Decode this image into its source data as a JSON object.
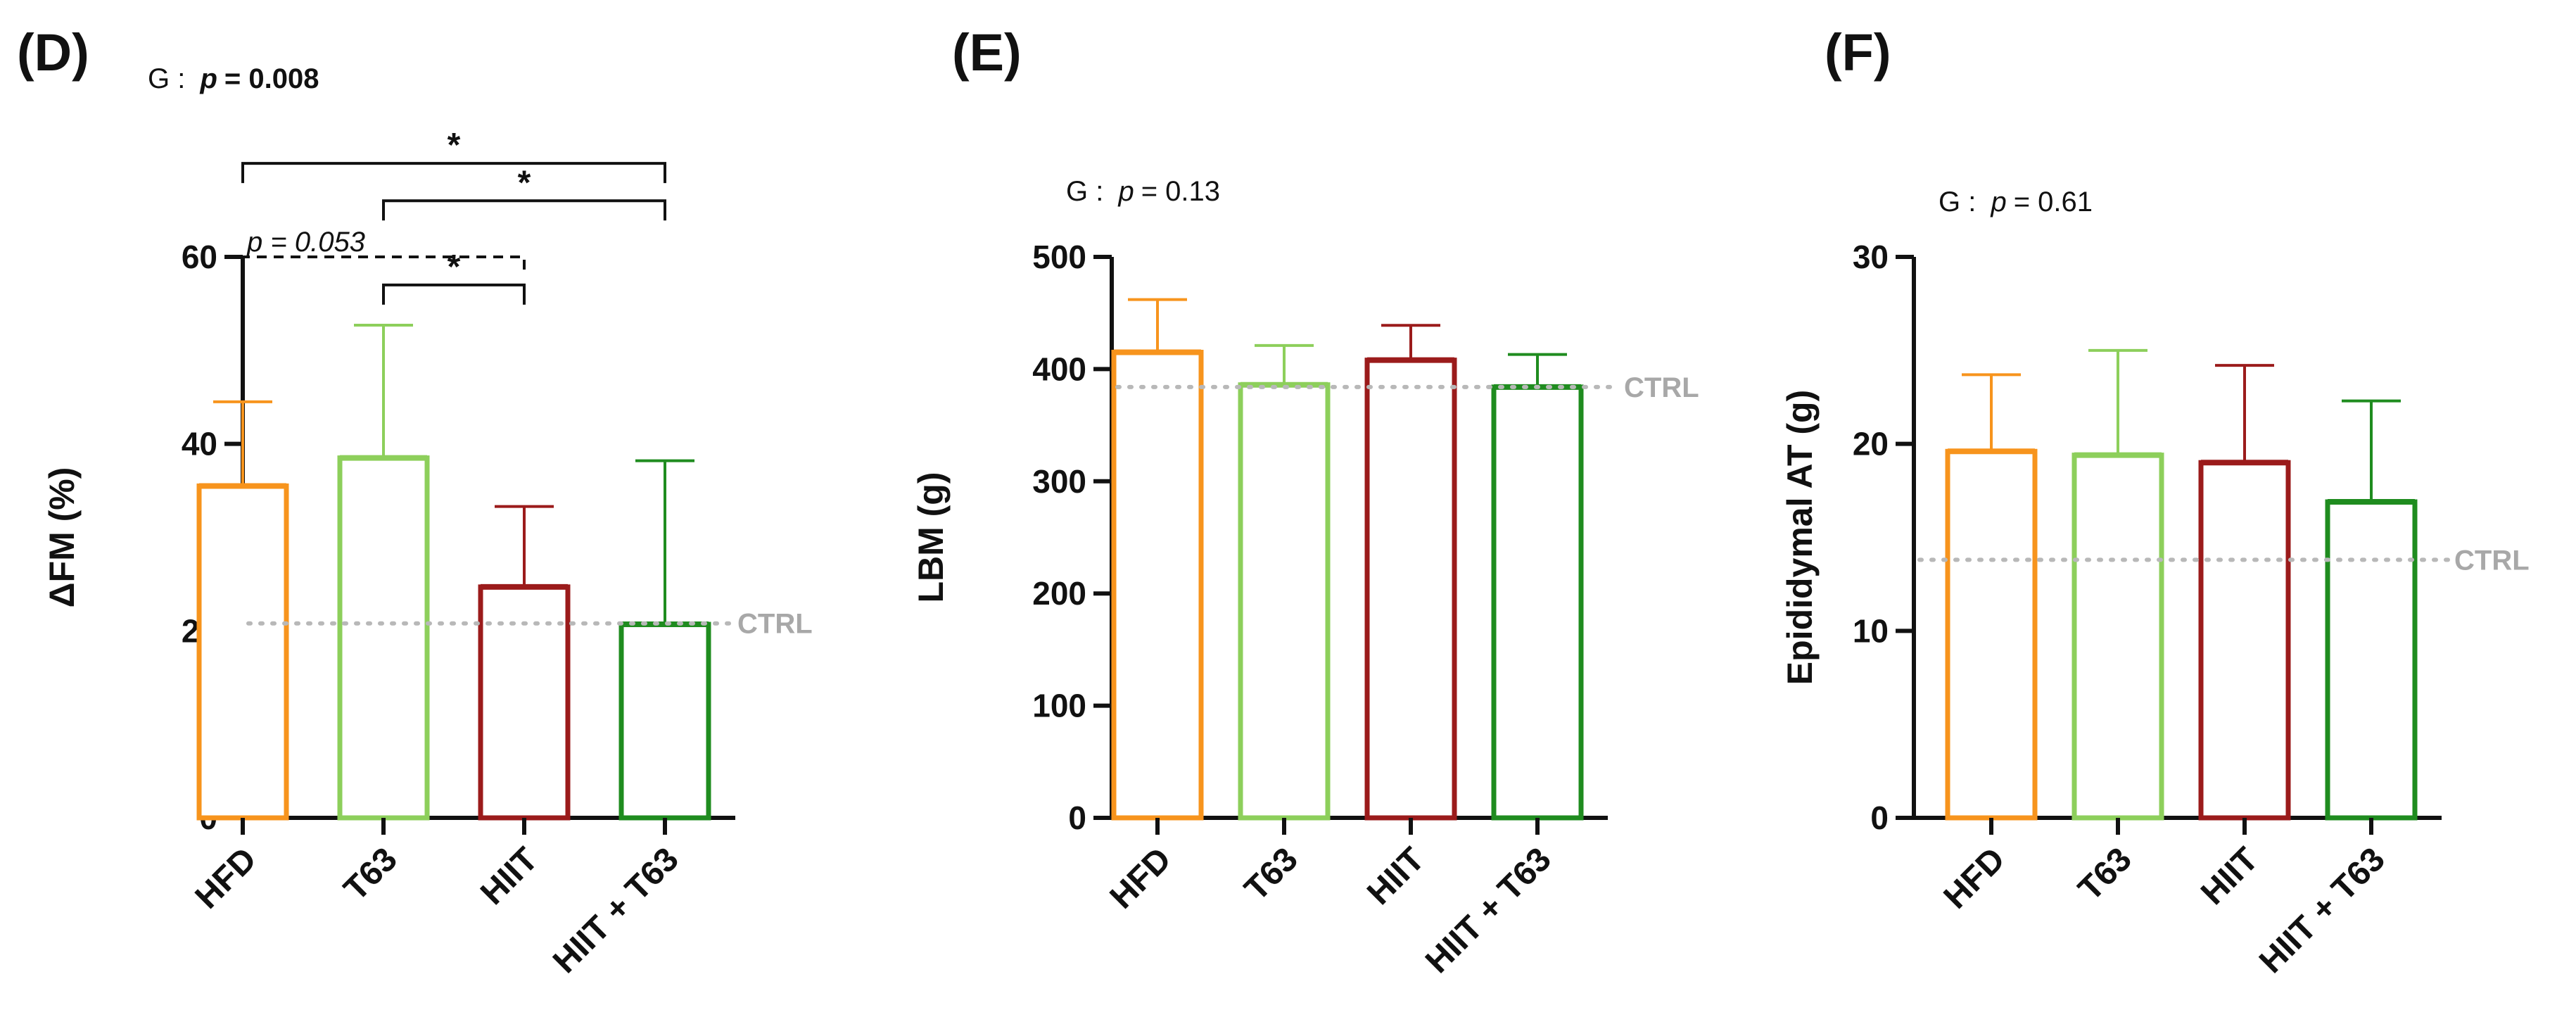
{
  "chart_data": [
    {
      "panel": "(D)",
      "type": "bar",
      "stat": {
        "prefix": "G :",
        "p_symbol": "p",
        "value": "= 0.008",
        "bold_value": true
      },
      "ylabel": "ΔFM (%)",
      "ylim": [
        0,
        60
      ],
      "yticks": [
        0,
        20,
        40,
        60
      ],
      "categories": [
        "HFD",
        "T63",
        "HIIT",
        "HIIT + T63"
      ],
      "values": [
        35.5,
        38.5,
        24.7,
        20.7
      ],
      "errors": [
        9.0,
        14.2,
        8.6,
        17.5
      ],
      "colors": [
        "#f7941d",
        "#8dcf5b",
        "#9b1b1b",
        "#1f8c1f"
      ],
      "reference": {
        "label": "CTRL",
        "value": 20.8,
        "color": "#b8b8b8"
      },
      "comparisons": [
        {
          "from": 0,
          "to": 3,
          "y": 70,
          "label": "*",
          "dashed": false
        },
        {
          "from": 1,
          "to": 3,
          "y": 66,
          "label": "*",
          "dashed": false
        },
        {
          "from": 0,
          "to": 2,
          "y": 60,
          "label": "p = 0.053",
          "dashed": true
        },
        {
          "from": 1,
          "to": 2,
          "y": 57,
          "label": "*",
          "dashed": false
        }
      ]
    },
    {
      "panel": "(E)",
      "type": "bar",
      "stat": {
        "prefix": "G :",
        "p_symbol": "p",
        "value": "= 0.13",
        "bold_value": false
      },
      "ylabel": "LBM (g)",
      "ylim": [
        0,
        500
      ],
      "yticks": [
        0,
        100,
        200,
        300,
        400,
        500
      ],
      "categories": [
        "HFD",
        "T63",
        "HIIT",
        "HIIT + T63"
      ],
      "values": [
        415,
        386,
        408,
        384
      ],
      "errors": [
        47,
        35,
        31,
        29
      ],
      "colors": [
        "#f7941d",
        "#8dcf5b",
        "#9b1b1b",
        "#1f8c1f"
      ],
      "reference": {
        "label": "CTRL",
        "value": 384,
        "color": "#b8b8b8"
      },
      "comparisons": []
    },
    {
      "panel": "(F)",
      "type": "bar",
      "stat": {
        "prefix": "G :",
        "p_symbol": "p",
        "value": "= 0.61",
        "bold_value": false
      },
      "ylabel": "Epididymal AT (g)",
      "ylim": [
        0,
        30
      ],
      "yticks": [
        0,
        10,
        20,
        30
      ],
      "categories": [
        "HFD",
        "T63",
        "HIIT",
        "HIIT + T63"
      ],
      "values": [
        19.6,
        19.4,
        19.0,
        16.9
      ],
      "errors": [
        4.1,
        5.6,
        5.2,
        5.4
      ],
      "colors": [
        "#f7941d",
        "#8dcf5b",
        "#9b1b1b",
        "#1f8c1f"
      ],
      "reference": {
        "label": "CTRL",
        "value": 13.8,
        "color": "#b8b8b8"
      },
      "comparisons": []
    }
  ]
}
